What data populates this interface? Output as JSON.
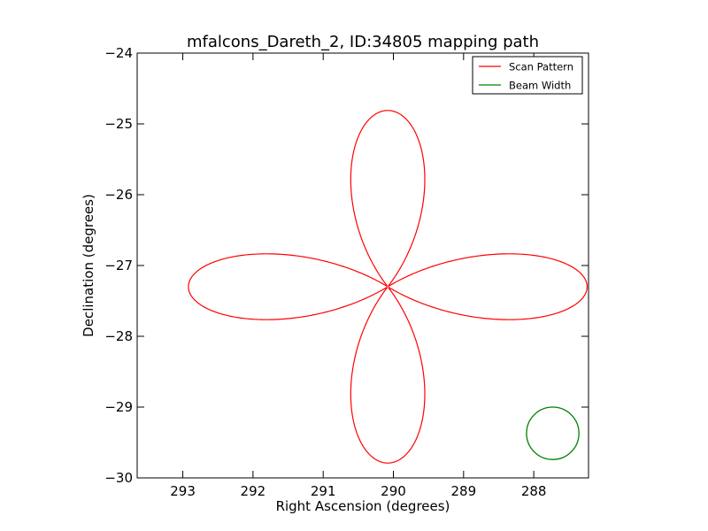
{
  "chart_data": {
    "type": "line",
    "title": "mfalcons_Dareth_2, ID:34805 mapping path",
    "xlabel": "Right Ascension (degrees)",
    "ylabel": "Declination (degrees)",
    "xlim": [
      293.65,
      287.22
    ],
    "ylim": [
      -30,
      -24
    ],
    "x_axis_inverted": true,
    "xticks": [
      293,
      292,
      291,
      290,
      289,
      288
    ],
    "xtick_labels": [
      "293",
      "292",
      "291",
      "290",
      "289",
      "288"
    ],
    "yticks": [
      -30,
      -29,
      -28,
      -27,
      -26,
      -25,
      -24
    ],
    "ytick_labels": [
      "−30",
      "−29",
      "−28",
      "−27",
      "−26",
      "−25",
      "−24"
    ],
    "grid": false,
    "legend_position": "top-right",
    "series": [
      {
        "name": "Scan Pattern",
        "color": "#ff0000",
        "shape": "four-petal rose curve",
        "center": [
          290.08,
          -27.3
        ],
        "petals": [
          {
            "direction": "north",
            "tip": [
              290.08,
              -24.81
            ],
            "half_width_deg": 0.76
          },
          {
            "direction": "east",
            "tip": [
              292.92,
              -27.3
            ],
            "half_height_deg": 0.67
          },
          {
            "direction": "south",
            "tip": [
              290.08,
              -29.81
            ],
            "half_width_deg": 0.76
          },
          {
            "direction": "west",
            "tip": [
              287.27,
              -27.3
            ],
            "half_height_deg": 0.67
          }
        ]
      },
      {
        "name": "Beam Width",
        "color": "#008000",
        "shape": "circle",
        "center": [
          287.73,
          -29.37
        ],
        "radius_deg": 0.37
      }
    ]
  }
}
